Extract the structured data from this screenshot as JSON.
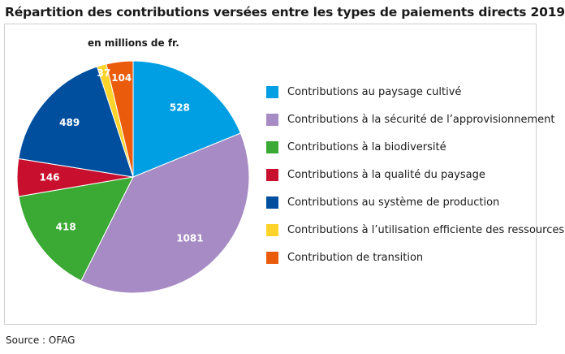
{
  "header": {
    "title": "Répartition des contributions versées entre les types de paiements directs 2019"
  },
  "footer": {
    "source": "Source : OFAG"
  },
  "chart_data": {
    "type": "pie",
    "unit_label": "en millions de fr.",
    "start_angle_deg": 0,
    "direction": "clockwise",
    "legend_position": "right",
    "slices": [
      {
        "label": "Contributions au paysage cultivé",
        "value": 528,
        "color": "#009fe3"
      },
      {
        "label": "Contributions à la sécurité de l’approvisionnement",
        "value": 1081,
        "color": "#a78bc4"
      },
      {
        "label": "Contributions à la biodiversité",
        "value": 418,
        "color": "#3aaa35"
      },
      {
        "label": "Contributions à la qualité du paysage",
        "value": 146,
        "color": "#c8102e"
      },
      {
        "label": "Contributions au système de production",
        "value": 489,
        "color": "#004f9f"
      },
      {
        "label": "Contributions à l’utilisation efficiente des ressources",
        "value": 37,
        "color": "#ffd42a"
      },
      {
        "label": "Contribution de transition",
        "value": 104,
        "color": "#ea5b0c"
      }
    ]
  }
}
